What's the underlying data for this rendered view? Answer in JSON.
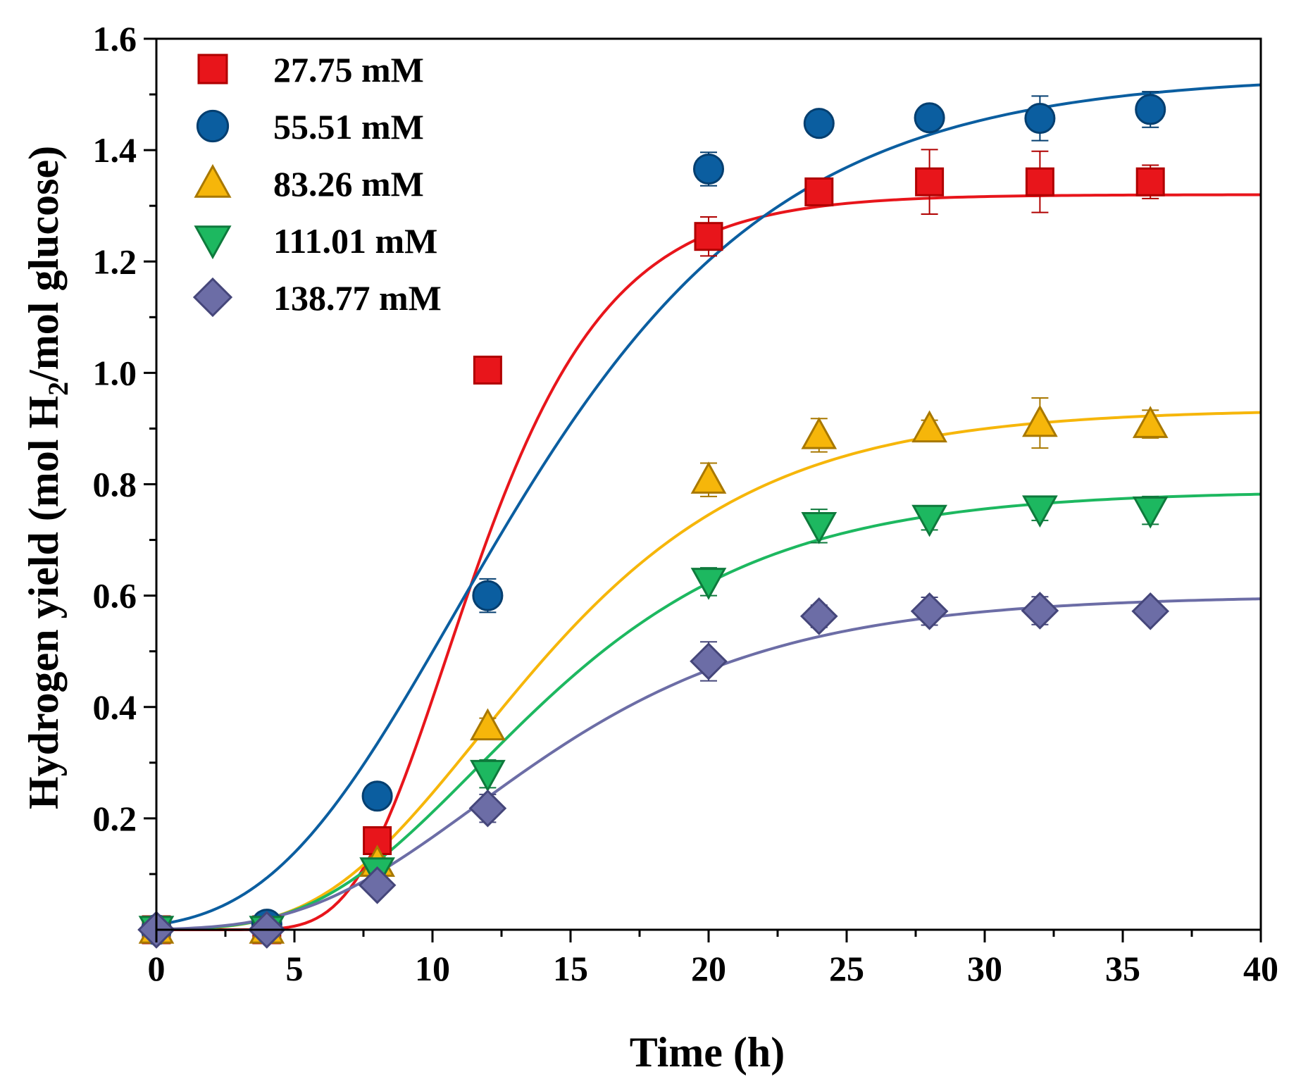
{
  "chart_data": {
    "type": "scatter",
    "title": "",
    "xlabel": "Time (h)",
    "ylabel_parts": {
      "before": "Hydrogen yield (mol H",
      "subscript": "2",
      "after": "/mol glucose)"
    },
    "xlim": [
      0,
      40
    ],
    "ylim": [
      0,
      1.6
    ],
    "x_ticks": [
      "0",
      "5",
      "10",
      "15",
      "20",
      "25",
      "30",
      "35",
      "40"
    ],
    "y_ticks": [
      "0.2",
      "0.4",
      "0.6",
      "0.8",
      "1.0",
      "1.2",
      "1.4",
      "1.6"
    ],
    "legend_position": "top-left",
    "series": [
      {
        "name": "27.75 mM",
        "marker": "square",
        "color": "#e8151b",
        "stroke": "#b00000",
        "x": [
          0,
          4,
          8,
          12,
          20,
          24,
          28,
          32,
          36
        ],
        "y": [
          0,
          0,
          0.16,
          1.005,
          1.245,
          1.325,
          1.343,
          1.343,
          1.343
        ],
        "err": [
          0.005,
          0.005,
          0.02,
          0.015,
          0.035,
          0.02,
          0.058,
          0.055,
          0.03
        ],
        "fit": {
          "model": "gompertz",
          "P": 1.32,
          "Rm": 0.148,
          "lambda": 7.2
        }
      },
      {
        "name": "55.51 mM",
        "marker": "circle",
        "color": "#0b5ea0",
        "stroke": "#053f70",
        "x": [
          0,
          4,
          8,
          12,
          20,
          24,
          28,
          32,
          36
        ],
        "y": [
          0,
          0.01,
          0.24,
          0.6,
          1.366,
          1.448,
          1.458,
          1.457,
          1.473
        ],
        "err": [
          0.005,
          0.005,
          0.015,
          0.03,
          0.03,
          0.015,
          0.015,
          0.04,
          0.032
        ],
        "fit": {
          "model": "gompertz",
          "P": 1.535,
          "Rm": 0.086,
          "lambda": 4.2
        }
      },
      {
        "name": "83.26 mM",
        "marker": "triangle-up",
        "color": "#f6b60a",
        "stroke": "#a87800",
        "x": [
          0,
          4,
          8,
          12,
          20,
          24,
          28,
          32,
          36
        ],
        "y": [
          0,
          0,
          0.12,
          0.365,
          0.808,
          0.888,
          0.9,
          0.91,
          0.908
        ],
        "err": [
          0.005,
          0.005,
          0.01,
          0.015,
          0.03,
          0.03,
          0.015,
          0.045,
          0.025
        ],
        "fit": {
          "model": "gompertz",
          "P": 0.935,
          "Rm": 0.061,
          "lambda": 6.0
        }
      },
      {
        "name": "111.01 mM",
        "marker": "triangle-down",
        "color": "#1db860",
        "stroke": "#0e7a3c",
        "x": [
          0,
          4,
          8,
          12,
          20,
          24,
          28,
          32,
          36
        ],
        "y": [
          0,
          0,
          0.105,
          0.28,
          0.625,
          0.725,
          0.738,
          0.755,
          0.753
        ],
        "err": [
          0.005,
          0.005,
          0.01,
          0.025,
          0.025,
          0.03,
          0.02,
          0.02,
          0.025
        ],
        "fit": {
          "model": "gompertz",
          "P": 0.788,
          "Rm": 0.05,
          "lambda": 5.8
        }
      },
      {
        "name": "138.77 mM",
        "marker": "diamond",
        "color": "#6c6da6",
        "stroke": "#45467a",
        "x": [
          0,
          4,
          8,
          12,
          20,
          24,
          28,
          32,
          36
        ],
        "y": [
          0,
          0,
          0.08,
          0.218,
          0.482,
          0.563,
          0.572,
          0.573,
          0.572
        ],
        "err": [
          0.005,
          0.005,
          0.01,
          0.025,
          0.035,
          0.02,
          0.025,
          0.025,
          0.015
        ],
        "fit": {
          "model": "gompertz",
          "P": 0.6,
          "Rm": 0.036,
          "lambda": 5.4
        }
      }
    ]
  }
}
